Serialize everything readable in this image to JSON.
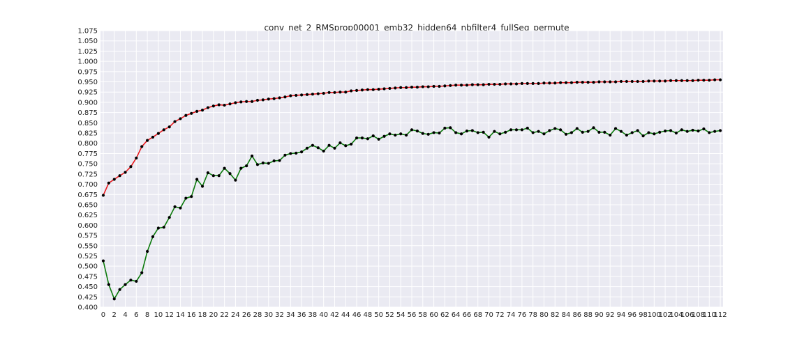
{
  "chart_data": {
    "type": "line",
    "title": "conv_net_2_RMSprop00001_emb32_hidden64_nbfilter4_fullSeq_permute",
    "xlabel": "",
    "ylabel": "",
    "xlim": [
      -0.5,
      112.5
    ],
    "ylim": [
      0.4,
      1.075
    ],
    "grid": true,
    "legend": "none",
    "xticks": [
      0,
      2,
      4,
      6,
      8,
      10,
      12,
      14,
      16,
      18,
      20,
      22,
      24,
      26,
      28,
      30,
      32,
      34,
      36,
      38,
      40,
      42,
      44,
      46,
      48,
      50,
      52,
      54,
      56,
      58,
      60,
      62,
      64,
      66,
      68,
      70,
      72,
      74,
      76,
      78,
      80,
      82,
      84,
      86,
      88,
      90,
      92,
      94,
      96,
      98,
      100,
      102,
      104,
      106,
      108,
      110,
      112
    ],
    "yticks": [
      "0.400",
      "0.425",
      "0.450",
      "0.475",
      "0.500",
      "0.525",
      "0.550",
      "0.575",
      "0.600",
      "0.625",
      "0.650",
      "0.675",
      "0.700",
      "0.725",
      "0.750",
      "0.775",
      "0.800",
      "0.825",
      "0.850",
      "0.875",
      "0.900",
      "0.925",
      "0.950",
      "0.975",
      "1.000",
      "1.025",
      "1.050",
      "1.075"
    ],
    "x": [
      0,
      1,
      2,
      3,
      4,
      5,
      6,
      7,
      8,
      9,
      10,
      11,
      12,
      13,
      14,
      15,
      16,
      17,
      18,
      19,
      20,
      21,
      22,
      23,
      24,
      25,
      26,
      27,
      28,
      29,
      30,
      31,
      32,
      33,
      34,
      35,
      36,
      37,
      38,
      39,
      40,
      41,
      42,
      43,
      44,
      45,
      46,
      47,
      48,
      49,
      50,
      51,
      52,
      53,
      54,
      55,
      56,
      57,
      58,
      59,
      60,
      61,
      62,
      63,
      64,
      65,
      66,
      67,
      68,
      69,
      70,
      71,
      72,
      73,
      74,
      75,
      76,
      77,
      78,
      79,
      80,
      81,
      82,
      83,
      84,
      85,
      86,
      87,
      88,
      89,
      90,
      91,
      92,
      93,
      94,
      95,
      96,
      97,
      98,
      99,
      100,
      101,
      102,
      103,
      104,
      105,
      106,
      107,
      108,
      109,
      110,
      111,
      112
    ],
    "series": [
      {
        "color": "#e8161b",
        "values": [
          0.673,
          0.703,
          0.712,
          0.721,
          0.729,
          0.743,
          0.764,
          0.792,
          0.807,
          0.815,
          0.824,
          0.833,
          0.84,
          0.853,
          0.86,
          0.868,
          0.873,
          0.878,
          0.881,
          0.887,
          0.891,
          0.894,
          0.893,
          0.896,
          0.899,
          0.901,
          0.902,
          0.902,
          0.905,
          0.906,
          0.908,
          0.909,
          0.911,
          0.913,
          0.916,
          0.917,
          0.918,
          0.919,
          0.92,
          0.921,
          0.922,
          0.924,
          0.924,
          0.925,
          0.925,
          0.928,
          0.929,
          0.93,
          0.931,
          0.931,
          0.932,
          0.933,
          0.934,
          0.935,
          0.936,
          0.936,
          0.937,
          0.937,
          0.938,
          0.938,
          0.939,
          0.939,
          0.94,
          0.941,
          0.942,
          0.942,
          0.942,
          0.943,
          0.943,
          0.943,
          0.944,
          0.944,
          0.944,
          0.945,
          0.945,
          0.945,
          0.946,
          0.946,
          0.946,
          0.946,
          0.947,
          0.947,
          0.947,
          0.948,
          0.948,
          0.948,
          0.949,
          0.949,
          0.949,
          0.949,
          0.95,
          0.95,
          0.95,
          0.95,
          0.951,
          0.951,
          0.951,
          0.951,
          0.951,
          0.952,
          0.952,
          0.952,
          0.952,
          0.953,
          0.953,
          0.953,
          0.953,
          0.953,
          0.954,
          0.954,
          0.954,
          0.955,
          0.955
        ]
      },
      {
        "color": "#0b7a0b",
        "values": [
          0.513,
          0.455,
          0.42,
          0.443,
          0.455,
          0.466,
          0.463,
          0.484,
          0.536,
          0.572,
          0.593,
          0.595,
          0.619,
          0.645,
          0.642,
          0.666,
          0.67,
          0.712,
          0.695,
          0.728,
          0.721,
          0.721,
          0.739,
          0.726,
          0.71,
          0.739,
          0.745,
          0.769,
          0.748,
          0.752,
          0.751,
          0.757,
          0.758,
          0.771,
          0.775,
          0.776,
          0.779,
          0.788,
          0.795,
          0.789,
          0.781,
          0.795,
          0.788,
          0.801,
          0.794,
          0.798,
          0.813,
          0.813,
          0.811,
          0.818,
          0.81,
          0.817,
          0.823,
          0.82,
          0.823,
          0.82,
          0.833,
          0.83,
          0.824,
          0.822,
          0.826,
          0.825,
          0.837,
          0.838,
          0.826,
          0.823,
          0.83,
          0.831,
          0.826,
          0.827,
          0.815,
          0.829,
          0.823,
          0.827,
          0.833,
          0.833,
          0.833,
          0.837,
          0.826,
          0.829,
          0.823,
          0.831,
          0.836,
          0.833,
          0.822,
          0.826,
          0.836,
          0.827,
          0.829,
          0.838,
          0.827,
          0.827,
          0.82,
          0.836,
          0.829,
          0.82,
          0.826,
          0.831,
          0.818,
          0.826,
          0.823,
          0.827,
          0.83,
          0.831,
          0.825,
          0.833,
          0.829,
          0.832,
          0.83,
          0.835,
          0.826,
          0.829,
          0.831
        ]
      }
    ]
  }
}
